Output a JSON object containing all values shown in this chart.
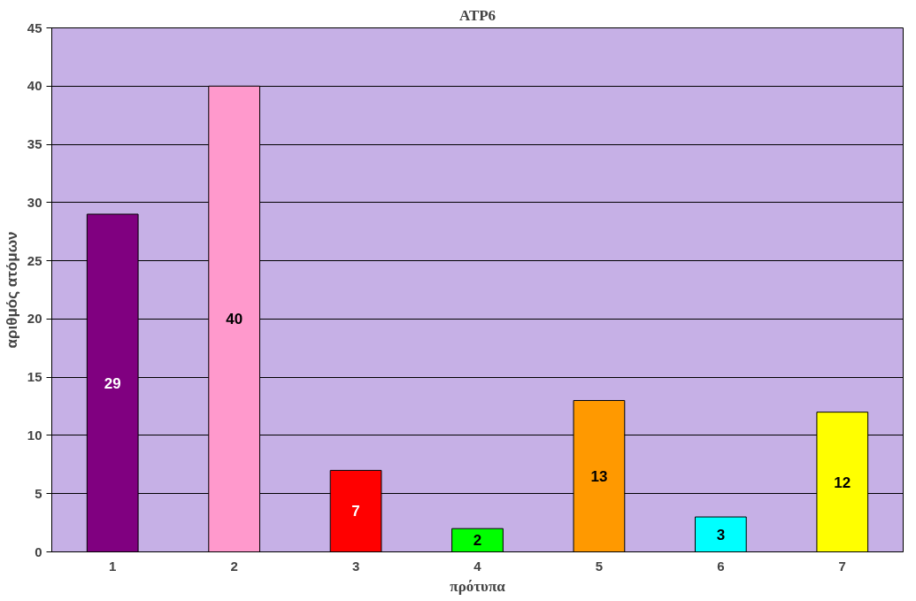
{
  "chart_data": {
    "type": "bar",
    "title": "ATP6",
    "xlabel": "πρότυπα",
    "ylabel": "αριθμός ατόμων",
    "categories": [
      "1",
      "2",
      "3",
      "4",
      "5",
      "6",
      "7"
    ],
    "values": [
      29,
      40,
      7,
      2,
      13,
      3,
      12
    ],
    "colors": [
      "#800080",
      "#ff99cc",
      "#ff0000",
      "#00ff00",
      "#ff9900",
      "#00ffff",
      "#ffff00"
    ],
    "ylim": [
      0,
      45
    ],
    "yticks": [
      0,
      5,
      10,
      15,
      20,
      25,
      30,
      35,
      40,
      45
    ],
    "grid": "y",
    "data_labels": true
  }
}
